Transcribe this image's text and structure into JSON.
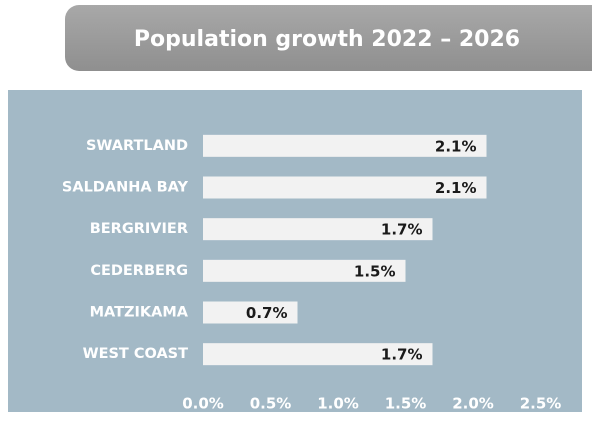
{
  "chart_data": {
    "type": "bar",
    "orientation": "horizontal",
    "title": "Population growth 2022 – 2026",
    "categories": [
      "SWARTLAND",
      "SALDANHA BAY",
      "BERGRIVIER",
      "CEDERBERG",
      "MATZIKAMA",
      "WEST COAST"
    ],
    "values": [
      2.1,
      2.1,
      1.7,
      1.5,
      0.7,
      1.7
    ],
    "value_labels": [
      "2.1%",
      "2.1%",
      "1.7%",
      "1.5%",
      "0.7%",
      "1.7%"
    ],
    "color": "#f2f2f2",
    "xlim": [
      0,
      2.5
    ],
    "xticks": [
      {
        "value": 0,
        "label": "0.0%"
      },
      {
        "value": 0.5,
        "label": "0.5%"
      },
      {
        "value": 1,
        "label": "1.0%"
      },
      {
        "value": 1.5,
        "label": "1.5%"
      },
      {
        "value": 2,
        "label": "2.0%"
      },
      {
        "value": 2.5,
        "label": "2.5%"
      }
    ],
    "grid": false
  }
}
